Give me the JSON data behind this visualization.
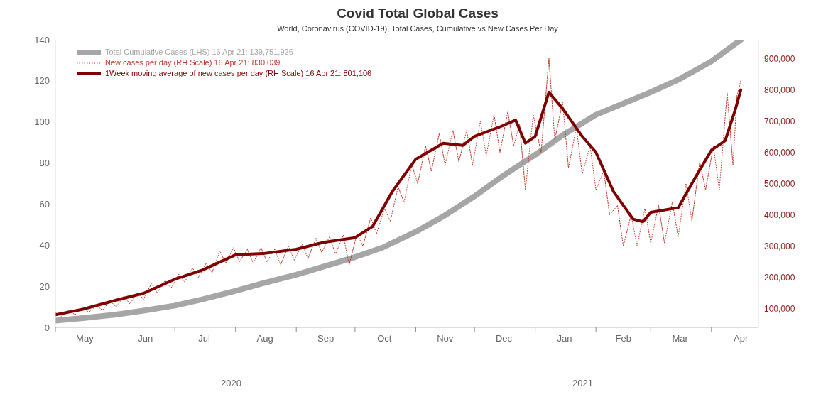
{
  "chart_data": {
    "type": "line",
    "title": "Covid Total Global Cases",
    "subtitle": "World, Coronavirus (COVID-19), Total Cases, Cumulative vs New Cases Per Day",
    "xlim": [
      "2020-05-01",
      "2021-04-25"
    ],
    "xticks": [
      {
        "value": "2020-05-01",
        "label": null
      },
      {
        "value": "2020-05-16",
        "label": "May"
      },
      {
        "value": "2020-06-01",
        "label": null
      },
      {
        "value": "2020-06-16",
        "label": "Jun"
      },
      {
        "value": "2020-07-01",
        "label": null
      },
      {
        "value": "2020-07-16",
        "label": "Jul"
      },
      {
        "value": "2020-08-01",
        "label": null
      },
      {
        "value": "2020-08-16",
        "label": "Aug"
      },
      {
        "value": "2020-09-01",
        "label": null
      },
      {
        "value": "2020-09-16",
        "label": "Sep"
      },
      {
        "value": "2020-10-01",
        "label": null
      },
      {
        "value": "2020-10-16",
        "label": "Oct"
      },
      {
        "value": "2020-11-01",
        "label": null
      },
      {
        "value": "2020-11-16",
        "label": "Nov"
      },
      {
        "value": "2020-12-01",
        "label": null
      },
      {
        "value": "2020-12-16",
        "label": "Dec"
      },
      {
        "value": "2021-01-01",
        "label": null
      },
      {
        "value": "2021-01-16",
        "label": "Jan"
      },
      {
        "value": "2021-02-01",
        "label": null
      },
      {
        "value": "2021-02-15",
        "label": "Feb"
      },
      {
        "value": "2021-03-01",
        "label": null
      },
      {
        "value": "2021-03-16",
        "label": "Mar"
      },
      {
        "value": "2021-04-01",
        "label": null
      },
      {
        "value": "2021-04-16",
        "label": "Apr"
      }
    ],
    "ylim": [
      0,
      140
    ],
    "yticks": [
      0,
      20,
      40,
      60,
      80,
      100,
      120,
      140
    ],
    "y2lim": [
      40000,
      960000
    ],
    "y2ticks": [
      {
        "value": 100000,
        "label": "100,000"
      },
      {
        "value": 200000,
        "label": "200,000"
      },
      {
        "value": 300000,
        "label": "300,000"
      },
      {
        "value": 400000,
        "label": "400,000"
      },
      {
        "value": 500000,
        "label": "500,000"
      },
      {
        "value": 600000,
        "label": "600,000"
      },
      {
        "value": 700000,
        "label": "700,000"
      },
      {
        "value": 800000,
        "label": "800,000"
      },
      {
        "value": 900000,
        "label": "900,000"
      }
    ],
    "grid": false,
    "legend": "top left",
    "marker": "none",
    "annotations": [
      "2020",
      "2021"
    ],
    "series": [
      {
        "name": "Total Cumulative Cases (LHS) 16 Apr 21: 139,751,926",
        "color": "#a6a6a6",
        "line_style": "solid",
        "x": [
          "2020-05-01",
          "2020-05-15",
          "2020-06-01",
          "2020-06-15",
          "2020-07-01",
          "2020-07-15",
          "2020-08-01",
          "2020-08-15",
          "2020-09-01",
          "2020-09-15",
          "2020-10-01",
          "2020-10-15",
          "2020-11-01",
          "2020-11-15",
          "2020-12-01",
          "2020-12-15",
          "2021-01-01",
          "2021-01-15",
          "2021-02-01",
          "2021-02-15",
          "2021-03-01",
          "2021-03-15",
          "2021-04-01",
          "2021-04-16"
        ],
        "values": [
          3.3,
          4.5,
          6.2,
          8.1,
          10.6,
          13.6,
          17.8,
          21.5,
          25.6,
          29.6,
          34.2,
          38.8,
          46.5,
          54,
          63.8,
          73.4,
          84,
          93.5,
          103.5,
          109,
          114.5,
          120.5,
          129.5,
          140
        ]
      },
      {
        "name": "New cases per day (RH Scale) 16 Apr 21: 830,039",
        "color": "#c0392b",
        "axis": "y2",
        "line_style": "dotted",
        "x": [
          "2020-05-01",
          "2020-05-04",
          "2020-05-08",
          "2020-05-11",
          "2020-05-15",
          "2020-05-18",
          "2020-05-22",
          "2020-05-25",
          "2020-05-29",
          "2020-06-01",
          "2020-06-05",
          "2020-06-08",
          "2020-06-12",
          "2020-06-15",
          "2020-06-19",
          "2020-06-22",
          "2020-06-26",
          "2020-06-29",
          "2020-07-03",
          "2020-07-06",
          "2020-07-10",
          "2020-07-13",
          "2020-07-17",
          "2020-07-20",
          "2020-07-24",
          "2020-07-27",
          "2020-07-31",
          "2020-08-03",
          "2020-08-07",
          "2020-08-10",
          "2020-08-14",
          "2020-08-17",
          "2020-08-21",
          "2020-08-24",
          "2020-08-28",
          "2020-08-31",
          "2020-09-04",
          "2020-09-07",
          "2020-09-11",
          "2020-09-14",
          "2020-09-18",
          "2020-09-21",
          "2020-09-25",
          "2020-09-28",
          "2020-10-02",
          "2020-10-05",
          "2020-10-09",
          "2020-10-12",
          "2020-10-16",
          "2020-10-19",
          "2020-10-23",
          "2020-10-26",
          "2020-10-30",
          "2020-11-02",
          "2020-11-06",
          "2020-11-09",
          "2020-11-13",
          "2020-11-16",
          "2020-11-20",
          "2020-11-23",
          "2020-11-27",
          "2020-11-30",
          "2020-12-04",
          "2020-12-07",
          "2020-12-11",
          "2020-12-14",
          "2020-12-18",
          "2020-12-21",
          "2020-12-24",
          "2020-12-27",
          "2020-12-31",
          "2021-01-04",
          "2021-01-08",
          "2021-01-11",
          "2021-01-15",
          "2021-01-18",
          "2021-01-22",
          "2021-01-25",
          "2021-01-29",
          "2021-02-01",
          "2021-02-05",
          "2021-02-08",
          "2021-02-12",
          "2021-02-15",
          "2021-02-19",
          "2021-02-22",
          "2021-02-26",
          "2021-03-01",
          "2021-03-05",
          "2021-03-08",
          "2021-03-12",
          "2021-03-15",
          "2021-03-19",
          "2021-03-22",
          "2021-03-26",
          "2021-03-29",
          "2021-04-02",
          "2021-04-05",
          "2021-04-09",
          "2021-04-12",
          "2021-04-14",
          "2021-04-16"
        ],
        "values": [
          88000,
          75000,
          95000,
          80000,
          105000,
          88000,
          110000,
          95000,
          125000,
          105000,
          140000,
          115000,
          150000,
          130000,
          180000,
          150000,
          190000,
          165000,
          210000,
          185000,
          230000,
          200000,
          245000,
          215000,
          285000,
          245000,
          295000,
          250000,
          290000,
          245000,
          295000,
          250000,
          290000,
          240000,
          300000,
          255000,
          305000,
          260000,
          325000,
          280000,
          330000,
          275000,
          335000,
          240000,
          340000,
          300000,
          390000,
          340000,
          420000,
          380000,
          490000,
          440000,
          560000,
          500000,
          620000,
          540000,
          660000,
          560000,
          670000,
          570000,
          670000,
          560000,
          700000,
          590000,
          720000,
          600000,
          730000,
          620000,
          690000,
          480000,
          720000,
          600000,
          900000,
          640000,
          760000,
          550000,
          680000,
          530000,
          620000,
          480000,
          540000,
          400000,
          430000,
          300000,
          400000,
          300000,
          420000,
          310000,
          430000,
          310000,
          440000,
          330000,
          500000,
          380000,
          570000,
          480000,
          620000,
          480000,
          790000,
          560000,
          780000,
          830000
        ]
      },
      {
        "name": "1Week moving average of new cases per day (RH Scale) 16 Apr 21: 801,106",
        "color": "#7f0000",
        "axis": "y2",
        "line_style": "solid",
        "x": [
          "2020-05-01",
          "2020-05-15",
          "2020-06-01",
          "2020-06-15",
          "2020-07-01",
          "2020-07-15",
          "2020-08-01",
          "2020-08-15",
          "2020-09-01",
          "2020-09-15",
          "2020-10-01",
          "2020-10-10",
          "2020-10-20",
          "2020-11-01",
          "2020-11-15",
          "2020-11-25",
          "2020-12-01",
          "2020-12-15",
          "2020-12-22",
          "2020-12-27",
          "2021-01-01",
          "2021-01-08",
          "2021-01-15",
          "2021-01-25",
          "2021-02-01",
          "2021-02-10",
          "2021-02-20",
          "2021-02-25",
          "2021-03-01",
          "2021-03-15",
          "2021-03-25",
          "2021-04-01",
          "2021-04-08",
          "2021-04-13",
          "2021-04-16"
        ],
        "values": [
          80000,
          98000,
          127000,
          149000,
          194000,
          223000,
          272000,
          276000,
          290000,
          312000,
          327000,
          363000,
          474000,
          578000,
          629000,
          622000,
          651000,
          684000,
          703000,
          629000,
          651000,
          792000,
          740000,
          651000,
          600000,
          474000,
          386000,
          378000,
          408000,
          423000,
          533000,
          607000,
          637000,
          733000,
          800000
        ]
      }
    ]
  }
}
